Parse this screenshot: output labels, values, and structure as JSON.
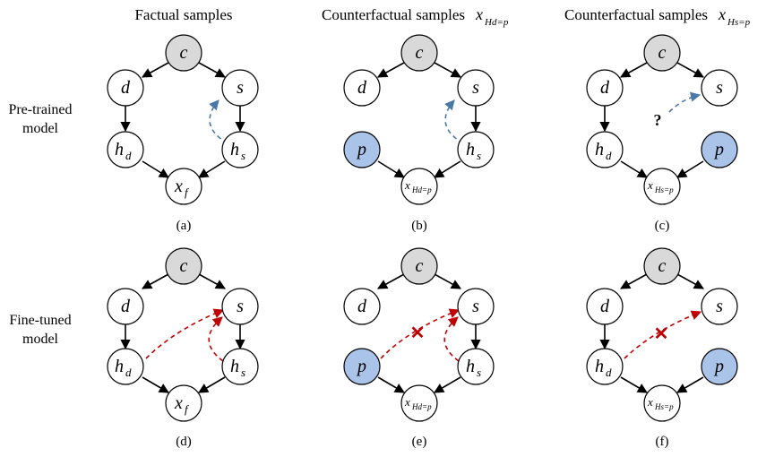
{
  "headers": {
    "factual": "Factual samples",
    "cf_hd_prefix": "Counterfactual samples",
    "cf_hs_prefix": "Counterfactual samples"
  },
  "row_labels": {
    "pretrained_line1": "Pre-trained",
    "pretrained_line2": "model",
    "finetuned_line1": "Fine-tuned",
    "finetuned_line2": "model"
  },
  "captions": [
    "(a)",
    "(b)",
    "(c)",
    "(d)",
    "(e)",
    "(f)"
  ],
  "nodes": {
    "c": "c",
    "d": "d",
    "s": "s",
    "h": "h",
    "h_sub_d": "d",
    "h_sub_s": "s",
    "x": "x",
    "x_sub_f": "f",
    "p": "p",
    "x_sub_hd_p": "Hd=p",
    "x_sub_hs_p": "Hs=p"
  },
  "unknown_mark": "?",
  "block_mark": "✕",
  "colors": {
    "gray_node": "#d9d9d9",
    "blue_node": "#a9c4e8",
    "blue_dashed": "#4a78a8",
    "red_dashed": "#c00000",
    "edge": "#000000"
  }
}
